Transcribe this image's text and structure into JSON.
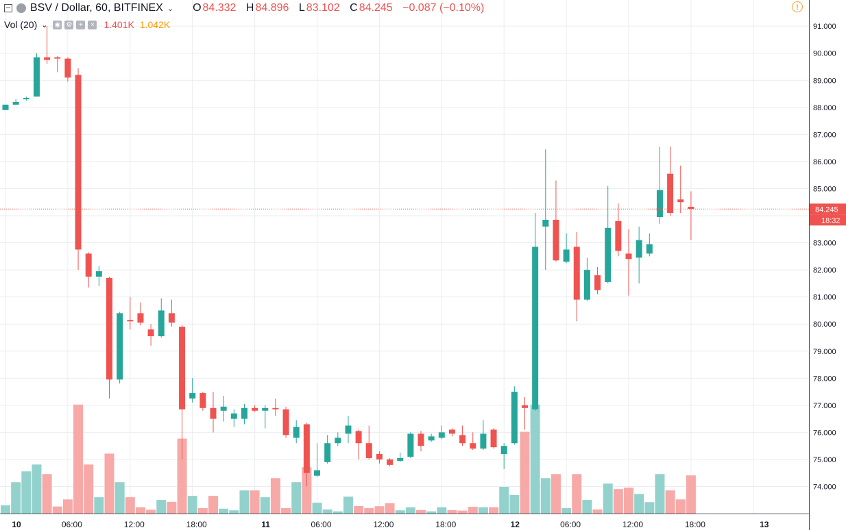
{
  "header": {
    "symbol": "BSV / Dollar, 60, BITFINEX",
    "open_label": "O",
    "open": "84.332",
    "high_label": "H",
    "high": "84.896",
    "low_label": "L",
    "low": "83.102",
    "close_label": "C",
    "close": "84.245",
    "change": "−0.087 (−0.10%)"
  },
  "volume": {
    "label": "Vol (20)",
    "value1": "1.401K",
    "value2": "1.042K"
  },
  "colors": {
    "up": "#26a69a",
    "down": "#ef5350",
    "up_vol": "#93d2cc",
    "down_vol": "#f7a9a7",
    "grid": "#e9ecf1",
    "price_line": "#ef5350"
  },
  "icons": [
    "collapse-icon",
    "coin-icon",
    "chevron-down-icon",
    "eye-icon",
    "settings-icon",
    "plus-icon",
    "close-icon",
    "alert-icon"
  ],
  "chart_data": {
    "type": "candlestick",
    "title": "BSV / Dollar, 60, BITFINEX",
    "y_range": [
      73.0,
      92.0
    ],
    "y_ticks": [
      "74.000",
      "75.000",
      "76.000",
      "77.000",
      "78.000",
      "79.000",
      "80.000",
      "81.000",
      "82.000",
      "83.000",
      "84.000",
      "85.000",
      "86.000",
      "87.000",
      "88.000",
      "89.000",
      "90.000",
      "91.000"
    ],
    "x_ticks": [
      {
        "i": 0,
        "label": "10",
        "bold": true
      },
      {
        "i": 6,
        "label": "06:00"
      },
      {
        "i": 12,
        "label": "12:00"
      },
      {
        "i": 18,
        "label": "18:00"
      },
      {
        "i": 24,
        "label": "11",
        "bold": true
      },
      {
        "i": 30,
        "label": "06:00"
      },
      {
        "i": 36,
        "label": "12:00"
      },
      {
        "i": 42,
        "label": "18:00"
      },
      {
        "i": 48,
        "label": "12",
        "bold": true
      },
      {
        "i": 54,
        "label": "06:00"
      },
      {
        "i": 60,
        "label": "12:00"
      },
      {
        "i": 66,
        "label": "18:00"
      },
      {
        "i": 72,
        "label": "13",
        "bold": true
      }
    ],
    "last_price": "84.245",
    "countdown": "18:32",
    "candles": [
      {
        "o": 87.9,
        "h": 88.1,
        "l": 87.9,
        "c": 88.1,
        "v": 300
      },
      {
        "o": 88.1,
        "h": 88.3,
        "l": 88.1,
        "c": 88.2,
        "v": 1150
      },
      {
        "o": 88.3,
        "h": 88.4,
        "l": 88.25,
        "c": 88.35,
        "v": 1550
      },
      {
        "o": 88.4,
        "h": 90.0,
        "l": 88.4,
        "c": 89.85,
        "v": 1800
      },
      {
        "o": 89.85,
        "h": 91.0,
        "l": 89.6,
        "c": 89.75,
        "v": 1450
      },
      {
        "o": 89.85,
        "h": 89.9,
        "l": 89.3,
        "c": 89.8,
        "v": 260
      },
      {
        "o": 89.8,
        "h": 89.85,
        "l": 88.95,
        "c": 89.1,
        "v": 520
      },
      {
        "o": 89.2,
        "h": 89.45,
        "l": 82.0,
        "c": 82.75,
        "v": 4000
      },
      {
        "o": 82.6,
        "h": 82.65,
        "l": 81.35,
        "c": 81.75,
        "v": 1800
      },
      {
        "o": 81.75,
        "h": 82.15,
        "l": 81.4,
        "c": 81.95,
        "v": 600
      },
      {
        "o": 81.7,
        "h": 81.75,
        "l": 77.25,
        "c": 77.95,
        "v": 2200
      },
      {
        "o": 77.95,
        "h": 80.45,
        "l": 77.8,
        "c": 80.4,
        "v": 1150
      },
      {
        "o": 80.15,
        "h": 81.0,
        "l": 79.8,
        "c": 80.1,
        "v": 600
      },
      {
        "o": 80.4,
        "h": 80.8,
        "l": 79.95,
        "c": 80.05,
        "v": 230
      },
      {
        "o": 79.8,
        "h": 80.0,
        "l": 79.2,
        "c": 79.55,
        "v": 140
      },
      {
        "o": 79.55,
        "h": 80.95,
        "l": 79.5,
        "c": 80.5,
        "v": 500
      },
      {
        "o": 80.4,
        "h": 80.9,
        "l": 79.9,
        "c": 80.05,
        "v": 430
      },
      {
        "o": 79.9,
        "h": 79.95,
        "l": 75.0,
        "c": 76.85,
        "v": 2750
      },
      {
        "o": 77.25,
        "h": 78.0,
        "l": 77.1,
        "c": 77.45,
        "v": 650
      },
      {
        "o": 77.45,
        "h": 77.5,
        "l": 76.8,
        "c": 76.9,
        "v": 200
      },
      {
        "o": 76.9,
        "h": 77.5,
        "l": 76.0,
        "c": 76.5,
        "v": 650
      },
      {
        "o": 76.8,
        "h": 77.35,
        "l": 76.4,
        "c": 76.95,
        "v": 180
      },
      {
        "o": 76.5,
        "h": 76.85,
        "l": 76.2,
        "c": 76.7,
        "v": 120
      },
      {
        "o": 76.5,
        "h": 77.05,
        "l": 76.3,
        "c": 76.9,
        "v": 850
      },
      {
        "o": 76.9,
        "h": 77.0,
        "l": 76.75,
        "c": 76.8,
        "v": 850
      },
      {
        "o": 76.8,
        "h": 77.0,
        "l": 76.15,
        "c": 76.9,
        "v": 600
      },
      {
        "o": 76.9,
        "h": 77.25,
        "l": 76.6,
        "c": 76.85,
        "v": 1300
      },
      {
        "o": 76.85,
        "h": 76.95,
        "l": 75.8,
        "c": 75.9,
        "v": 200
      },
      {
        "o": 75.8,
        "h": 76.45,
        "l": 75.6,
        "c": 76.2,
        "v": 1150
      },
      {
        "o": 76.3,
        "h": 76.35,
        "l": 74.0,
        "c": 74.5,
        "v": 1700
      },
      {
        "o": 74.4,
        "h": 75.6,
        "l": 74.35,
        "c": 74.6,
        "v": 400
      },
      {
        "o": 74.9,
        "h": 75.9,
        "l": 74.85,
        "c": 75.6,
        "v": 150
      },
      {
        "o": 75.6,
        "h": 76.0,
        "l": 75.5,
        "c": 75.8,
        "v": 80
      },
      {
        "o": 75.95,
        "h": 76.6,
        "l": 75.6,
        "c": 76.25,
        "v": 620
      },
      {
        "o": 76.05,
        "h": 76.1,
        "l": 75.0,
        "c": 75.6,
        "v": 280
      },
      {
        "o": 75.6,
        "h": 76.25,
        "l": 75.0,
        "c": 75.05,
        "v": 200
      },
      {
        "o": 75.2,
        "h": 75.3,
        "l": 74.85,
        "c": 75.0,
        "v": 270
      },
      {
        "o": 75.0,
        "h": 75.05,
        "l": 74.75,
        "c": 74.8,
        "v": 380
      },
      {
        "o": 74.95,
        "h": 75.25,
        "l": 74.9,
        "c": 75.05,
        "v": 120
      },
      {
        "o": 75.1,
        "h": 76.0,
        "l": 75.05,
        "c": 75.95,
        "v": 230
      },
      {
        "o": 75.95,
        "h": 76.05,
        "l": 75.3,
        "c": 75.5,
        "v": 130
      },
      {
        "o": 75.7,
        "h": 75.95,
        "l": 75.65,
        "c": 75.85,
        "v": 80
      },
      {
        "o": 75.8,
        "h": 76.25,
        "l": 75.75,
        "c": 76.0,
        "v": 230
      },
      {
        "o": 76.1,
        "h": 76.15,
        "l": 75.85,
        "c": 75.95,
        "v": 130
      },
      {
        "o": 75.9,
        "h": 76.25,
        "l": 75.5,
        "c": 75.6,
        "v": 110
      },
      {
        "o": 75.6,
        "h": 76.0,
        "l": 75.35,
        "c": 75.4,
        "v": 250
      },
      {
        "o": 75.4,
        "h": 76.45,
        "l": 75.35,
        "c": 75.95,
        "v": 230
      },
      {
        "o": 76.1,
        "h": 76.15,
        "l": 75.4,
        "c": 75.45,
        "v": 230
      },
      {
        "o": 75.2,
        "h": 75.6,
        "l": 74.65,
        "c": 75.5,
        "v": 980
      },
      {
        "o": 75.6,
        "h": 77.7,
        "l": 75.55,
        "c": 77.5,
        "v": 680
      },
      {
        "o": 77.0,
        "h": 77.3,
        "l": 76.1,
        "c": 76.9,
        "v": 3000
      },
      {
        "o": 76.85,
        "h": 84.1,
        "l": 76.8,
        "c": 82.85,
        "v": 4000
      },
      {
        "o": 83.6,
        "h": 86.45,
        "l": 82.0,
        "c": 83.85,
        "v": 1300
      },
      {
        "o": 83.85,
        "h": 85.3,
        "l": 82.3,
        "c": 82.35,
        "v": 1450
      },
      {
        "o": 82.3,
        "h": 83.35,
        "l": 82.25,
        "c": 82.75,
        "v": 200
      },
      {
        "o": 82.85,
        "h": 83.4,
        "l": 80.1,
        "c": 80.9,
        "v": 1450
      },
      {
        "o": 80.9,
        "h": 82.45,
        "l": 80.85,
        "c": 82.0,
        "v": 500
      },
      {
        "o": 81.8,
        "h": 82.1,
        "l": 81.1,
        "c": 81.25,
        "v": 150
      },
      {
        "o": 81.55,
        "h": 85.1,
        "l": 81.5,
        "c": 83.55,
        "v": 1100
      },
      {
        "o": 83.8,
        "h": 84.45,
        "l": 82.5,
        "c": 82.7,
        "v": 900
      },
      {
        "o": 82.6,
        "h": 83.5,
        "l": 81.05,
        "c": 82.4,
        "v": 950
      },
      {
        "o": 82.45,
        "h": 83.6,
        "l": 81.5,
        "c": 83.1,
        "v": 720
      },
      {
        "o": 82.6,
        "h": 83.35,
        "l": 82.5,
        "c": 82.95,
        "v": 420
      },
      {
        "o": 83.95,
        "h": 86.55,
        "l": 83.7,
        "c": 84.95,
        "v": 1450
      },
      {
        "o": 85.55,
        "h": 86.55,
        "l": 84.0,
        "c": 84.1,
        "v": 850
      },
      {
        "o": 84.6,
        "h": 85.85,
        "l": 84.1,
        "c": 84.5,
        "v": 520
      },
      {
        "o": 84.33,
        "h": 84.9,
        "l": 83.1,
        "c": 84.25,
        "v": 1401
      }
    ]
  }
}
